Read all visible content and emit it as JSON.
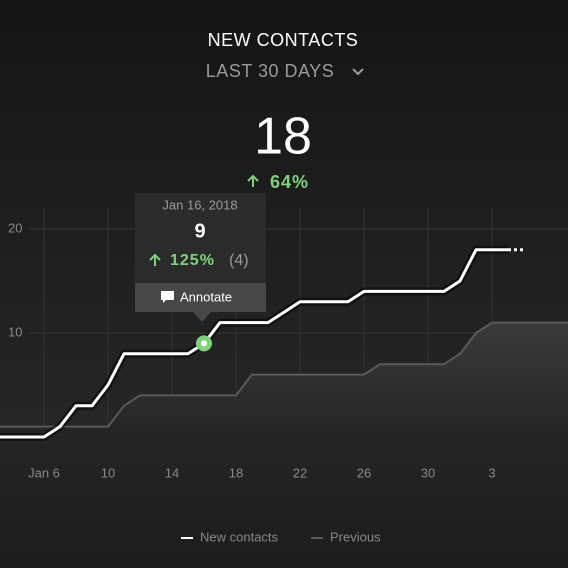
{
  "summary": {
    "title": "NEW CONTACTS",
    "period": "LAST 30 DAYS",
    "total": 18,
    "change": {
      "value": 64,
      "label": "64%"
    }
  },
  "chart_data": {
    "type": "line",
    "x": [
      3,
      4,
      5,
      6,
      7,
      8,
      9,
      10,
      11,
      12,
      13,
      14,
      15,
      16,
      17,
      18,
      19,
      20,
      21,
      22,
      23,
      24,
      25,
      26,
      27,
      28,
      29,
      30,
      31,
      32,
      33,
      34,
      35,
      36,
      37,
      38,
      39
    ],
    "series": [
      {
        "name": "New contacts",
        "color": "#ffffff",
        "values": [
          0,
          0,
          0,
          0,
          1,
          3,
          3,
          5,
          8,
          8,
          8,
          8,
          8,
          9,
          11,
          11,
          11,
          11,
          12,
          13,
          13,
          13,
          13,
          14,
          14,
          14,
          14,
          14,
          14,
          15,
          18,
          18,
          18,
          null,
          null,
          null,
          null
        ]
      },
      {
        "name": "Previous",
        "color": "#5a5a5a",
        "values": [
          1,
          1,
          1,
          1,
          1,
          1,
          1,
          1,
          3,
          4,
          4,
          4,
          4,
          4,
          4,
          4,
          6,
          6,
          6,
          6,
          6,
          6,
          6,
          6,
          7,
          7,
          7,
          7,
          7,
          8,
          10,
          11,
          11,
          11,
          11,
          11,
          11
        ]
      }
    ],
    "xlim": [
      3.25,
      38.75
    ],
    "xticks": [
      {
        "value": 6,
        "label": "Jan 6"
      },
      10,
      14,
      18,
      22,
      26,
      30,
      {
        "value": 34,
        "label": "3"
      }
    ],
    "ylim": [
      0,
      20
    ],
    "yticks": [
      10,
      20
    ],
    "grid": true,
    "tooltip": {
      "date": "Jan 16, 2018",
      "value": 9,
      "change": {
        "value": 125,
        "label": "125%"
      },
      "previous": {
        "value": 4,
        "label": "(4)"
      },
      "action": "Annotate"
    }
  }
}
